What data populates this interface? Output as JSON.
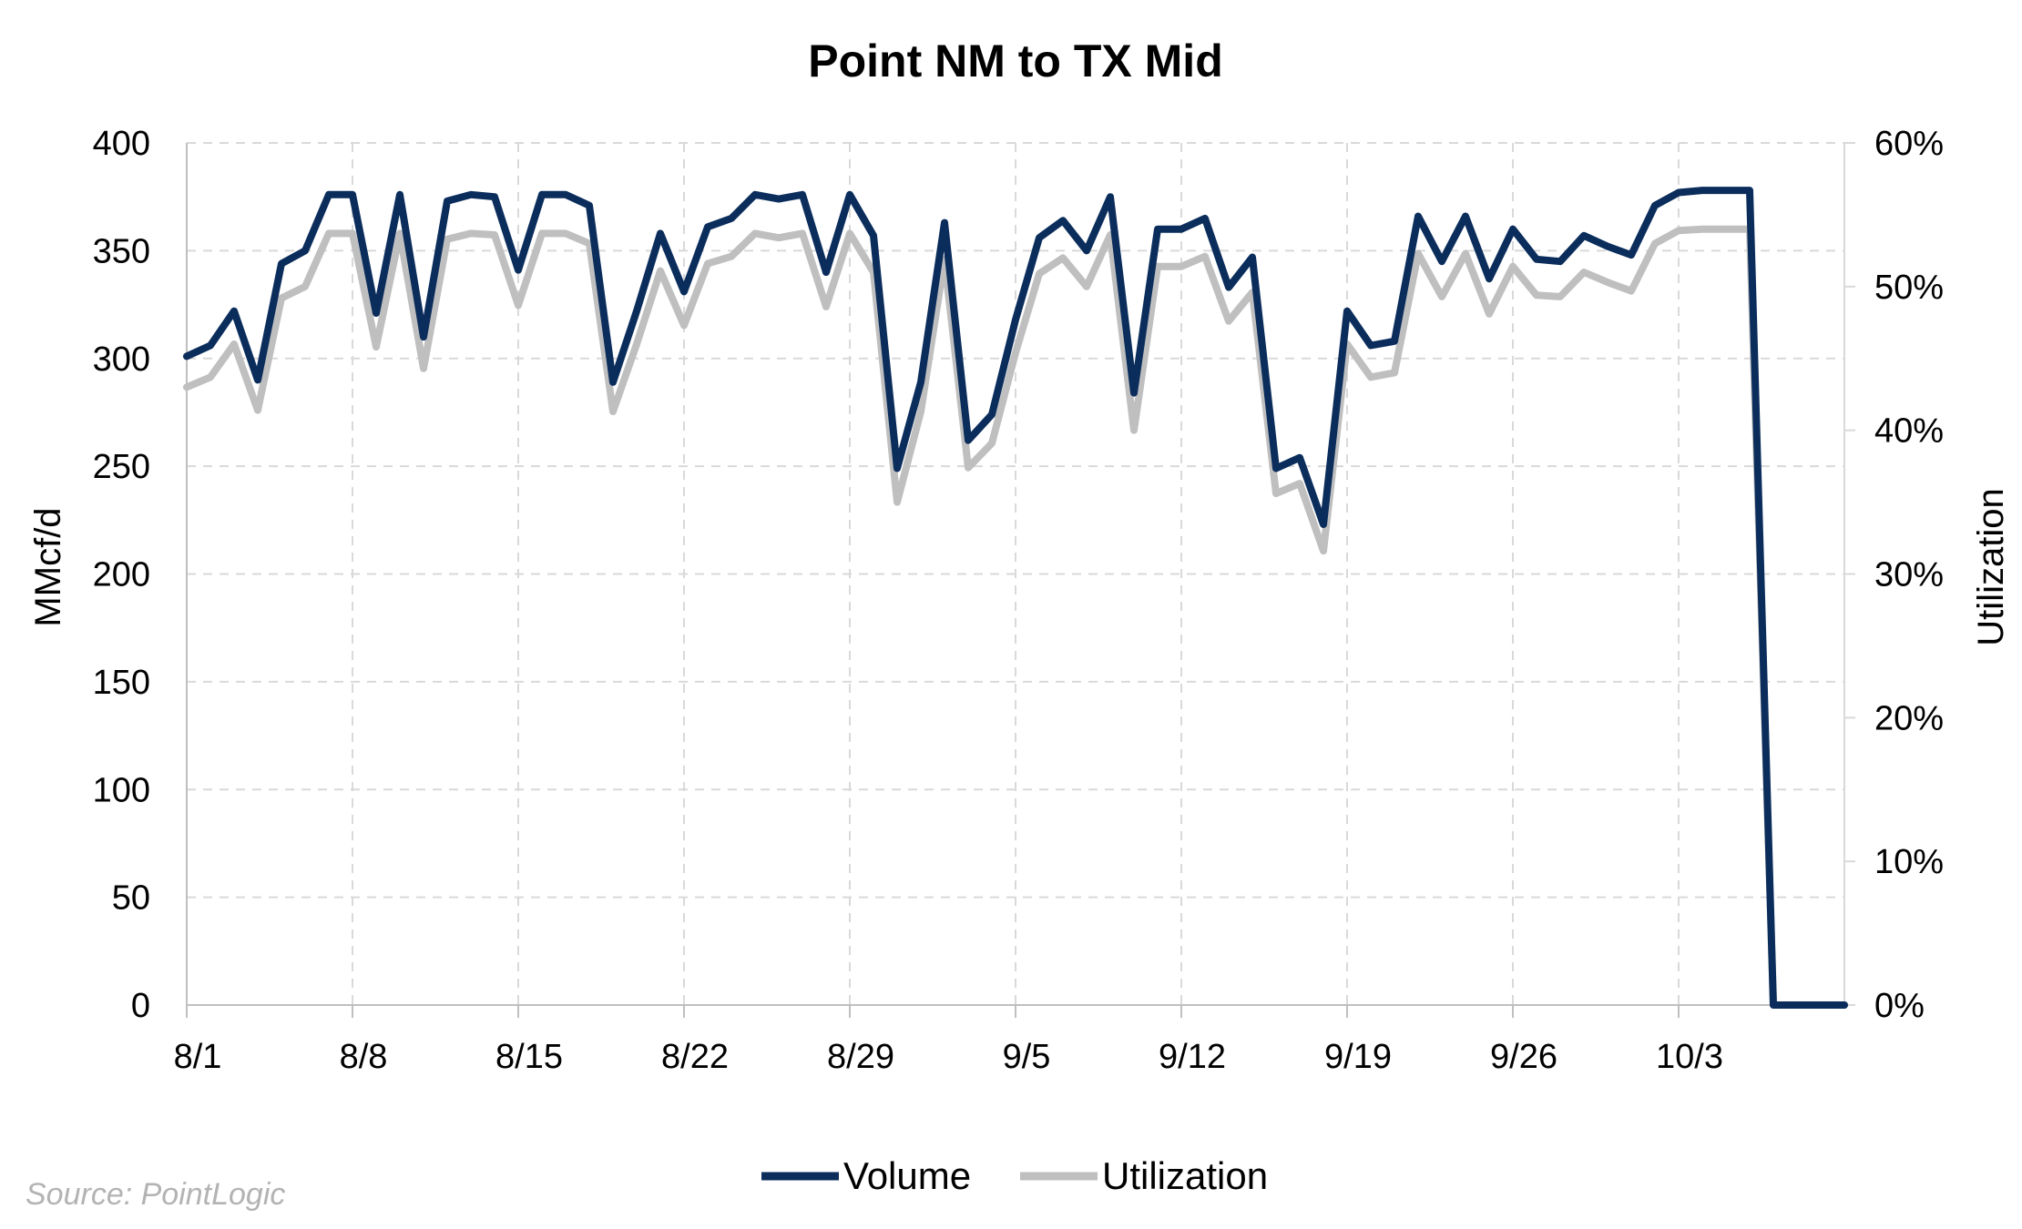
{
  "chart_data": {
    "type": "line",
    "title": "Point NM to TX Mid",
    "ylabel": "MMcf/d",
    "y2label": "Utilization",
    "ylim": [
      0,
      400
    ],
    "y2lim": [
      0,
      0.6
    ],
    "yticks": [
      "0",
      "50",
      "100",
      "150",
      "200",
      "250",
      "300",
      "350",
      "400"
    ],
    "y2ticks": [
      "0%",
      "10%",
      "20%",
      "30%",
      "40%",
      "50%",
      "60%"
    ],
    "xtick_labels": [
      "8/1",
      "8/8",
      "8/15",
      "8/22",
      "8/29",
      "9/5",
      "9/12",
      "9/19",
      "9/26",
      "10/3"
    ],
    "xtick_day_offsets": [
      0,
      7,
      14,
      21,
      28,
      35,
      42,
      49,
      56,
      63
    ],
    "x_start": "8/1",
    "grid": true,
    "legend_position": "bottom",
    "series": [
      {
        "name": "Volume",
        "axis": "left",
        "color": "#0b2d5c",
        "values": [
          301,
          306,
          322,
          290,
          344,
          350,
          376,
          376,
          321,
          376,
          310,
          373,
          376,
          375,
          341,
          376,
          376,
          371,
          289,
          322,
          358,
          331,
          361,
          365,
          376,
          374,
          376,
          340,
          376,
          357,
          249,
          289,
          363,
          262,
          274,
          318,
          356,
          364,
          350,
          375,
          284,
          360,
          360,
          365,
          333,
          347,
          249,
          254,
          223,
          322,
          306,
          308,
          366,
          345,
          366,
          337,
          360,
          346,
          345,
          357,
          352,
          348,
          371,
          377,
          378,
          378,
          378,
          0,
          0,
          0,
          0
        ]
      },
      {
        "name": "Utilization",
        "axis": "right",
        "color": "#bfbfbf",
        "values": [
          0.43,
          0.437,
          0.46,
          0.414,
          0.492,
          0.5,
          0.537,
          0.537,
          0.458,
          0.537,
          0.443,
          0.533,
          0.537,
          0.536,
          0.487,
          0.537,
          0.537,
          0.53,
          0.413,
          0.46,
          0.511,
          0.473,
          0.516,
          0.521,
          0.537,
          0.534,
          0.537,
          0.486,
          0.537,
          0.51,
          0.35,
          0.413,
          0.519,
          0.374,
          0.391,
          0.454,
          0.509,
          0.52,
          0.5,
          0.536,
          0.4,
          0.514,
          0.514,
          0.521,
          0.476,
          0.496,
          0.356,
          0.363,
          0.316,
          0.46,
          0.437,
          0.44,
          0.523,
          0.493,
          0.523,
          0.481,
          0.514,
          0.494,
          0.493,
          0.51,
          0.503,
          0.497,
          0.53,
          0.539,
          0.54,
          0.54,
          0.54,
          0,
          0,
          0,
          0
        ]
      }
    ]
  },
  "source": "Source: PointLogic"
}
